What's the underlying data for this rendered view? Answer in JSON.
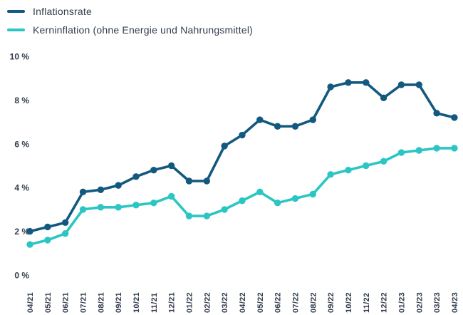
{
  "colors": {
    "background": "#ffffff",
    "text": "#333d4d",
    "inflation_line": "#13597f",
    "core_inflation_line": "#2bc6c3"
  },
  "legend": {
    "position": "top-left",
    "items": [
      {
        "label": "Inflationsrate",
        "color": "#13597f"
      },
      {
        "label": "Kerninflation (ohne Energie und Nahrungsmittel)",
        "color": "#2bc6c3"
      }
    ]
  },
  "chart_data": {
    "type": "line",
    "title": "",
    "xlabel": "",
    "ylabel": "",
    "grid": false,
    "legend_position": "top-left",
    "ylim": [
      0,
      10
    ],
    "yticks": [
      {
        "v": 0,
        "label": "0 %"
      },
      {
        "v": 2,
        "label": "2 %"
      },
      {
        "v": 4,
        "label": "4 %"
      },
      {
        "v": 6,
        "label": "6 %"
      },
      {
        "v": 8,
        "label": "8 %"
      },
      {
        "v": 10,
        "label": "10 %"
      }
    ],
    "categories": [
      "04/21",
      "05/21",
      "06/21",
      "07/21",
      "08/21",
      "09/21",
      "10/21",
      "11/21",
      "12/21",
      "01/22",
      "02/22",
      "03/22",
      "04/22",
      "05/22",
      "06/22",
      "07/22",
      "08/22",
      "09/22",
      "10/22",
      "11/22",
      "12/22",
      "01/23",
      "02/23",
      "03/23",
      "04/23"
    ],
    "series": [
      {
        "name": "Inflationsrate",
        "color": "#13597f",
        "unit": "%",
        "values": [
          2.0,
          2.2,
          2.4,
          3.8,
          3.9,
          4.1,
          4.5,
          4.8,
          5.0,
          4.3,
          4.3,
          5.9,
          6.4,
          7.1,
          6.8,
          6.8,
          7.1,
          8.6,
          8.8,
          8.8,
          8.1,
          8.7,
          8.7,
          7.4,
          7.2
        ]
      },
      {
        "name": "Kerninflation (ohne Energie und Nahrungsmittel)",
        "color": "#2bc6c3",
        "unit": "%",
        "values": [
          1.4,
          1.6,
          1.9,
          3.0,
          3.1,
          3.1,
          3.2,
          3.3,
          3.6,
          2.7,
          2.7,
          3.0,
          3.4,
          3.8,
          3.3,
          3.5,
          3.7,
          4.6,
          4.8,
          5.0,
          5.2,
          5.6,
          5.7,
          5.8,
          5.8
        ]
      }
    ]
  }
}
